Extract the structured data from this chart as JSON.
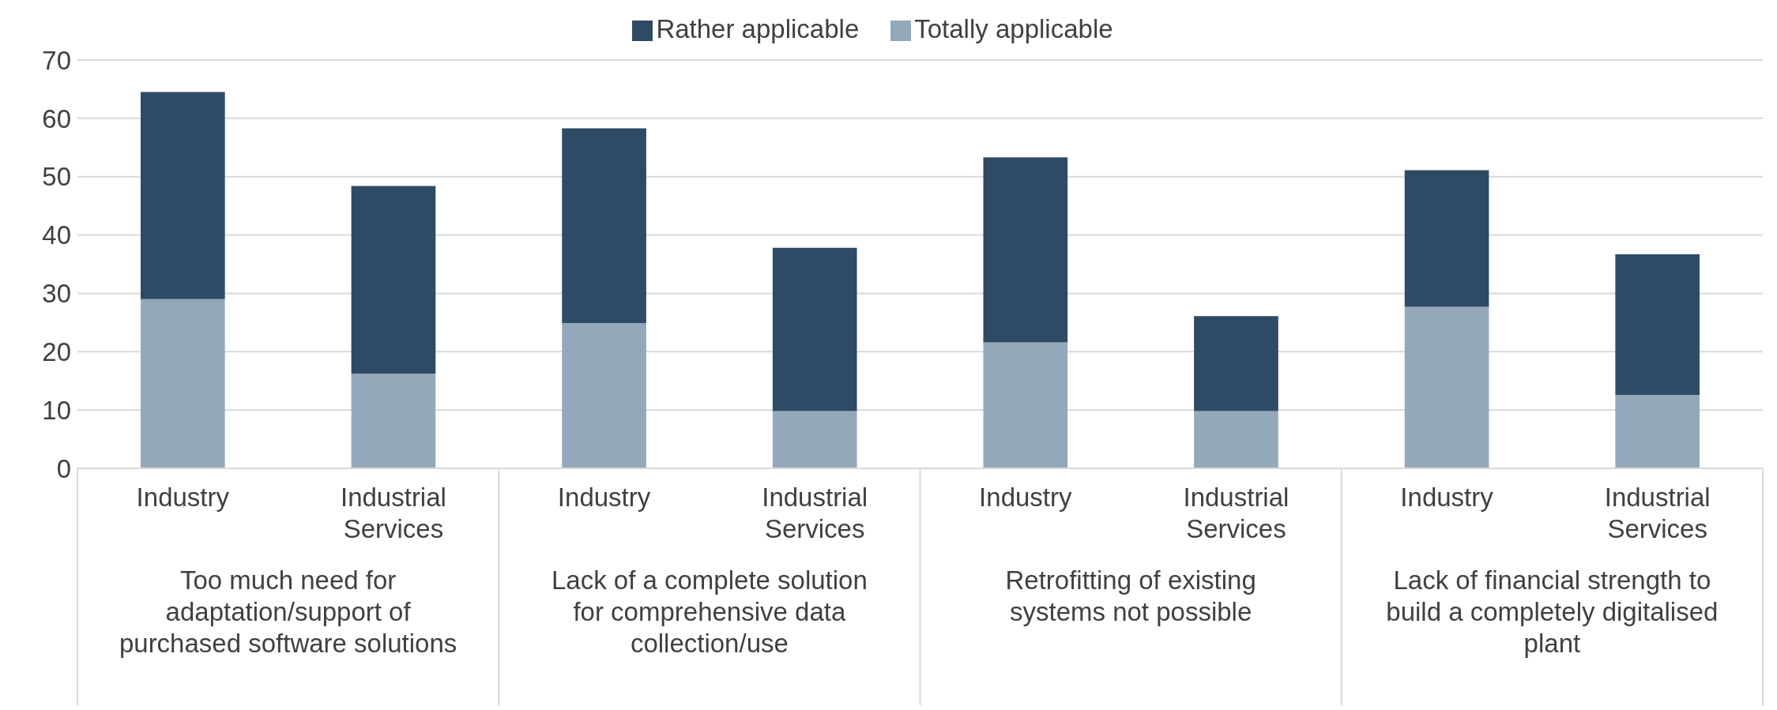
{
  "chart_data": {
    "type": "bar",
    "stacked": true,
    "categories": [
      "Industry",
      "Industrial Services",
      "Industry",
      "Industrial Services",
      "Industry",
      "Industrial Services",
      "Industry",
      "Industrial Services"
    ],
    "series": [
      {
        "name": "Totally applicable",
        "color": "#94a8bc",
        "values": [
          29.0,
          16.2,
          24.9,
          9.8,
          21.6,
          9.8,
          27.7,
          12.6
        ]
      },
      {
        "name": "Rather applicable",
        "color": "#2e4a64",
        "values": [
          35.5,
          32.2,
          33.4,
          28.0,
          31.7,
          16.3,
          23.4,
          24.1
        ]
      }
    ],
    "annotations": [
      "Too much need for adaptation/support of purchased software solutions",
      "Lack of a complete solution for comprehensive data collection/use",
      "Retrofitting of existing systems not possible",
      "Lack of financial strength to build a completely digitalised plant"
    ],
    "ylim": [
      0,
      70
    ],
    "yticks": [
      0,
      10,
      20,
      30,
      40,
      50,
      60,
      70
    ],
    "grid": "y",
    "legend": "top"
  }
}
